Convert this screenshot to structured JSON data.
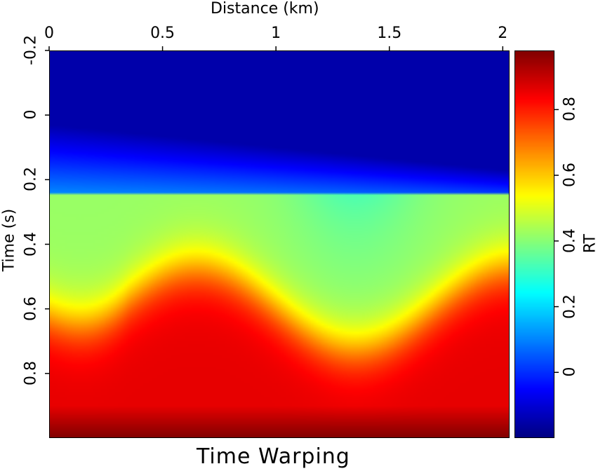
{
  "chart_data": {
    "type": "heatmap",
    "title": "Time Warping",
    "xlabel": "Distance (km)",
    "ylabel": "Time (s)",
    "xlim": [
      0,
      2.03
    ],
    "ylim": [
      -0.2,
      1.0
    ],
    "xticks": [
      "0",
      "0.5",
      "1",
      "1.5",
      "2"
    ],
    "xtick_values": [
      0,
      0.5,
      1,
      1.5,
      2
    ],
    "yticks": [
      "-0.2",
      "0",
      "0.2",
      "0.4",
      "0.6",
      "0.8"
    ],
    "ytick_values": [
      -0.2,
      0,
      0.2,
      0.4,
      0.6,
      0.8
    ],
    "colorbar": {
      "label": "RT",
      "range": [
        -0.2,
        0.98
      ],
      "ticks": [
        "0",
        "0.2",
        "0.4",
        "0.6",
        "0.8"
      ],
      "tick_values": [
        0,
        0.2,
        0.4,
        0.6,
        0.8
      ],
      "colormap": "jet"
    },
    "field": {
      "top_value": -0.15,
      "top_boundary_time_at_x0": 0.03,
      "top_boundary_slope_s_per_km": 0.07,
      "sharp_step_time": 0.24,
      "middle_value": 0.42,
      "lower_value": 0.86,
      "bottom_value": 0.98,
      "interface_mean_time": 0.595,
      "interface_amplitude": 0.125,
      "interface_wavelength_km": 1.4,
      "interface_trough_x_km": 1.35
    }
  }
}
